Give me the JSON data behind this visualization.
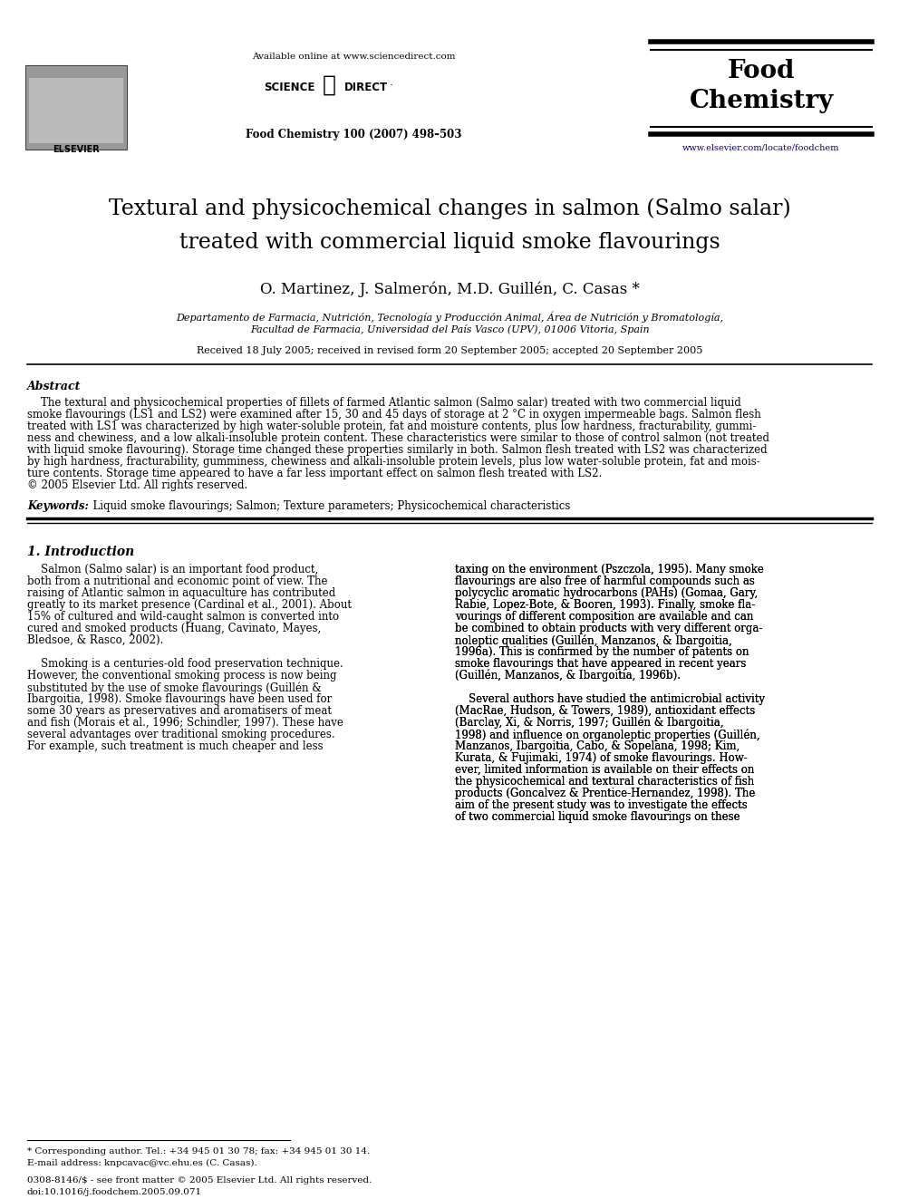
{
  "bg_color": "#ffffff",
  "fig_width": 9.92,
  "fig_height": 13.23,
  "header_available_online": "Available online at www.sciencedirect.com",
  "header_journal_ref": "Food Chemistry 100 (2007) 498–503",
  "header_journal_url": "www.elsevier.com/locate/foodchem",
  "title_line1_normal": "Textural and physicochemical changes in salmon (",
  "title_line1_italic": "Salmo salar",
  "title_line1_end": ")",
  "title_line2": "treated with commercial liquid smoke flavourings",
  "authors": "O. Martinez, J. Salmerón, M.D. Guillén, C. Casas *",
  "affiliation_line1": "Departamento de Farmacia, Nutrición, Tecnología y Producción Animal, Área de Nutrición y Bromatología,",
  "affiliation_line2": "Facultad de Farmacia, Universidad del País Vasco (UPV), 01006 Vitoria, Spain",
  "received": "Received 18 July 2005; received in revised form 20 September 2005; accepted 20 September 2005",
  "abstract_heading": "Abstract",
  "abs_lines": [
    "    The textural and physicochemical properties of fillets of farmed Atlantic salmon (Salmo salar) treated with two commercial liquid",
    "smoke flavourings (LS1 and LS2) were examined after 15, 30 and 45 days of storage at 2 °C in oxygen impermeable bags. Salmon flesh",
    "treated with LS1 was characterized by high water-soluble protein, fat and moisture contents, plus low hardness, fracturability, gummi-",
    "ness and chewiness, and a low alkali-insoluble protein content. These characteristics were similar to those of control salmon (not treated",
    "with liquid smoke flavouring). Storage time changed these properties similarly in both. Salmon flesh treated with LS2 was characterized",
    "by high hardness, fracturability, gumminess, chewiness and alkali-insoluble protein levels, plus low water-soluble protein, fat and mois-",
    "ture contents. Storage time appeared to have a far less important effect on salmon flesh treated with LS2.",
    "© 2005 Elsevier Ltd. All rights reserved."
  ],
  "keywords_label": "Keywords:",
  "keywords_text": "  Liquid smoke flavourings; Salmon; Texture parameters; Physicochemical characteristics",
  "section1_heading": "1. Introduction",
  "col1_lines": [
    "    Salmon (Salmo salar) is an important food product,",
    "both from a nutritional and economic point of view. The",
    "raising of Atlantic salmon in aquaculture has contributed",
    "greatly to its market presence (Cardinal et al., 2001). About",
    "15% of cultured and wild-caught salmon is converted into",
    "cured and smoked products (Huang, Cavinato, Mayes,",
    "Bledsoe, & Rasco, 2002).",
    "",
    "    Smoking is a centuries-old food preservation technique.",
    "However, the conventional smoking process is now being",
    "substituted by the use of smoke flavourings (Guillén &",
    "Ibargoitia, 1998). Smoke flavourings have been used for",
    "some 30 years as preservatives and aromatisers of meat",
    "and fish (Morais et al., 1996; Schindler, 1997). These have",
    "several advantages over traditional smoking procedures.",
    "For example, such treatment is much cheaper and less"
  ],
  "col2_lines": [
    "taxing on the environment (Pszczola, 1995). Many smoke",
    "flavourings are also free of harmful compounds such as",
    "polycyclic aromatic hydrocarbons (PAHs) (Gomaa, Gary,",
    "Rabie, Lopez-Bote, & Booren, 1993). Finally, smoke fla-",
    "vourings of different composition are available and can",
    "be combined to obtain products with very different orga-",
    "noleptic qualities (Guillén, Manzanos, & Ibargoitia,",
    "1996a). This is confirmed by the number of patents on",
    "smoke flavourings that have appeared in recent years",
    "(Guillén, Manzanos, & Ibargoitia, 1996b).",
    "",
    "    Several authors have studied the antimicrobial activity",
    "(MacRae, Hudson, & Towers, 1989), antioxidant effects",
    "(Barclay, Xi, & Norris, 1997; Guillén & Ibargoitia,",
    "1998) and influence on organoleptic properties (Guillén,",
    "Manzanos, Ibargoitia, Cabo, & Sopelana, 1998; Kim,",
    "Kurata, & Fujimaki, 1974) of smoke flavourings. How-",
    "ever, limited information is available on their effects on",
    "the physicochemical and textural characteristics of fish",
    "products (Goncalvez & Prentice-Hernandez, 1998). The",
    "aim of the present study was to investigate the effects",
    "of two commercial liquid smoke flavourings on these"
  ],
  "footnote_star": "* Corresponding author. Tel.: +34 945 01 30 78; fax: +34 945 01 30 14.",
  "footnote_email": "E-mail address: knpcavac@vc.ehu.es (C. Casas).",
  "footnote_issn": "0308-8146/$ - see front matter © 2005 Elsevier Ltd. All rights reserved.",
  "footnote_doi": "doi:10.1016/j.foodchem.2005.09.071",
  "link_color": "#000080",
  "text_color": "#000000"
}
